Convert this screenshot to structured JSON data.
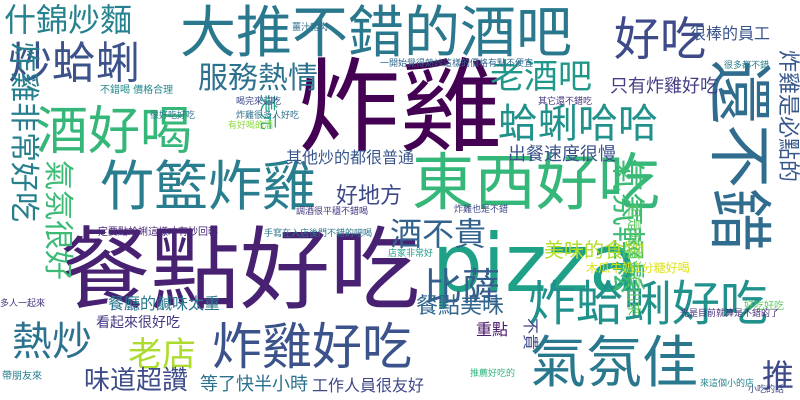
{
  "words": [
    {
      "text": "炸雞",
      "color": "#440154"
    },
    {
      "text": "餐點好吃",
      "color": "#482173"
    },
    {
      "text": "pizza",
      "color": "#1fa187"
    },
    {
      "text": "大推不錯的酒吧",
      "color": "#2a788e"
    },
    {
      "text": "東西好吃",
      "color": "#35b779"
    },
    {
      "text": "還不錯",
      "color": "#2f6c8e"
    },
    {
      "text": "竹籃炸雞",
      "color": "#287d8e"
    },
    {
      "text": "炸雞好吃",
      "color": "#3b528b"
    },
    {
      "text": "炸蛤蜊好吃",
      "color": "#21918c"
    },
    {
      "text": "氣氛佳",
      "color": "#2a788e"
    },
    {
      "text": "酒好喝",
      "color": "#35b779"
    },
    {
      "text": "好吃",
      "color": "#3e4a89"
    },
    {
      "text": "炒蛤蜊",
      "color": "#3b528b"
    },
    {
      "text": "炸雞非常好吃",
      "color": "#277f8e"
    },
    {
      "text": "什錦炒麵",
      "color": "#26828e"
    },
    {
      "text": "服務熱情",
      "color": "#2c718e"
    },
    {
      "text": "老酒吧",
      "color": "#1f988b"
    },
    {
      "text": "蛤蜊哈哈",
      "color": "#21918c"
    },
    {
      "text": "氣氛輕鬆",
      "color": "#3dbc74"
    },
    {
      "text": "氣氛很好",
      "color": "#3bbb75"
    },
    {
      "text": "熱炒",
      "color": "#2c728e"
    },
    {
      "text": "老店",
      "color": "#addc30"
    },
    {
      "text": "味道超讚",
      "color": "#3e4c8a"
    },
    {
      "text": "比薩",
      "color": "#355f8d"
    },
    {
      "text": "餐點美味",
      "color": "#31678e"
    },
    {
      "text": "酒不貴",
      "color": "#33628d"
    },
    {
      "text": "推",
      "color": "#3e4a89"
    },
    {
      "text": "炸雞是必點的",
      "color": "#38588c"
    },
    {
      "text": "好地方",
      "color": "#3e4989"
    },
    {
      "text": "美味的食物",
      "color": "#b5de2b"
    },
    {
      "text": "工作人員很友好",
      "color": "#3f4788"
    },
    {
      "text": "等了快半小時",
      "color": "#2c728e"
    },
    {
      "text": "其他炒的都很普通",
      "color": "#39568c"
    },
    {
      "text": "出餐速度很慢",
      "color": "#3b528b"
    },
    {
      "text": "只有炸雞好吃",
      "color": "#433e85"
    },
    {
      "text": "很棒的員工",
      "color": "#3a548c"
    },
    {
      "text": "餐廳的鹹味太重",
      "color": "#2a768e"
    },
    {
      "text": "看起來很好吃",
      "color": "#443983"
    },
    {
      "text": "重點",
      "color": "#48186a"
    },
    {
      "text": "不貴",
      "color": "#3e4a89"
    },
    {
      "text": "美元",
      "color": "#20a486"
    },
    {
      "text": "但是味道沒有出來",
      "color": "#5ec962"
    },
    {
      "text": "木瓜牛奶1分糖好喝",
      "color": "#dde318"
    },
    {
      "text": "一定要點蛤蜊這樣才有妙回轉",
      "color": "#482878"
    },
    {
      "text": "一開始覺得熱炒這樣的價格有點不便宜",
      "color": "#31688e"
    },
    {
      "text": "其它還不錯吃",
      "color": "#46327e"
    },
    {
      "text": "不錯喝 價格合理",
      "color": "#238a8d"
    },
    {
      "text": "很多都不錯",
      "color": "#287c8e"
    },
    {
      "text": "薑汁豬肉",
      "color": "#2e6f8e"
    },
    {
      "text": "炸雞也是不錯",
      "color": "#3f4889"
    },
    {
      "text": "調酒很平穩不錯喝",
      "color": "#453781"
    },
    {
      "text": "手寫在入店後門不錯的吧喝",
      "color": "#2a768e"
    },
    {
      "text": "店家非常好",
      "color": "#1f9e89"
    },
    {
      "text": "推薦好吃的",
      "color": "#31b57b"
    },
    {
      "text": "光是目前就算是不錯的了",
      "color": "#472c7a"
    },
    {
      "text": "好吃好吃",
      "color": "#5ec962"
    },
    {
      "text": "帶朋友來",
      "color": "#277f8e"
    },
    {
      "text": "喝完來這吃",
      "color": "#3e4989"
    },
    {
      "text": "炸雞很多人好吃",
      "color": "#2d708e"
    },
    {
      "text": "小吃的話",
      "color": "#3f4788"
    },
    {
      "text": "有好喝的酒",
      "color": "#8fd744"
    },
    {
      "text": "多人一起來",
      "color": "#46337f"
    },
    {
      "text": "來這個小的店",
      "color": "#24868e"
    },
    {
      "text": "很好吃好吃",
      "color": "#2c728e"
    }
  ]
}
